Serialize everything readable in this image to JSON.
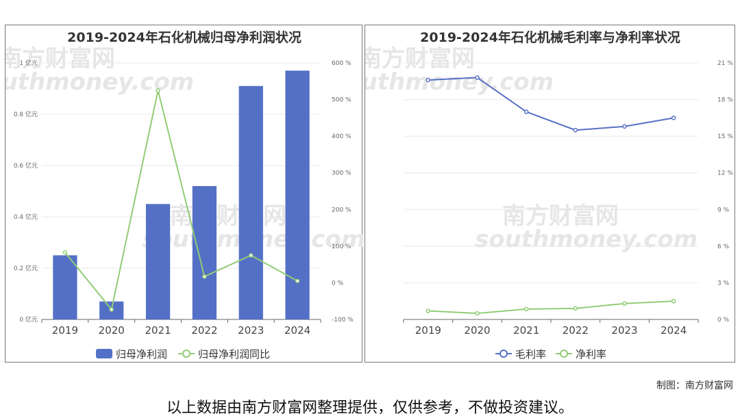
{
  "chart_data": [
    {
      "type": "bar+line",
      "title": "2019-2024年石化机械归母净利润状况",
      "categories": [
        "2019",
        "2020",
        "2021",
        "2022",
        "2023",
        "2024"
      ],
      "series": [
        {
          "name": "归母净利润",
          "kind": "bar",
          "axis": "left",
          "color": "#5470c6",
          "values": [
            0.25,
            0.07,
            0.45,
            0.52,
            0.91,
            0.97
          ]
        },
        {
          "name": "归母净利润同比",
          "kind": "line",
          "axis": "right",
          "color": "#91cc75",
          "values": [
            83,
            -73,
            525,
            17,
            75,
            5
          ]
        }
      ],
      "y_left": {
        "ticks": [
          "0 亿元",
          "0.2 亿元",
          "0.4 亿元",
          "0.6 亿元",
          "0.8 亿元",
          "1 亿元"
        ],
        "min": 0,
        "max": 1
      },
      "y_right": {
        "ticks": [
          "-100 %",
          "0 %",
          "100 %",
          "200 %",
          "300 %",
          "400 %",
          "500 %",
          "600 %"
        ],
        "min": -100,
        "max": 600
      },
      "legend": "bottom",
      "grid": true
    },
    {
      "type": "line",
      "title": "2019-2024年石化机械毛利率与净利率状况",
      "categories": [
        "2019",
        "2020",
        "2021",
        "2022",
        "2023",
        "2024"
      ],
      "series": [
        {
          "name": "毛利率",
          "color": "#5470c6",
          "values": [
            19.6,
            19.8,
            17.0,
            15.5,
            15.8,
            16.5
          ]
        },
        {
          "name": "净利率",
          "color": "#91cc75",
          "values": [
            0.7,
            0.5,
            0.85,
            0.9,
            1.3,
            1.5
          ]
        }
      ],
      "y_right": {
        "ticks": [
          "0 %",
          "3 %",
          "6 %",
          "9 %",
          "12 %",
          "15 %",
          "18 %",
          "21 %"
        ],
        "min": 0,
        "max": 21
      },
      "legend": "bottom",
      "grid": true
    }
  ],
  "watermark": {
    "cn": "南方财富网",
    "en": "southmoney.com"
  },
  "credit": "制图：南方财富网",
  "footer_note": "以上数据由南方财富网整理提供，仅供参考，不做投资建议。"
}
